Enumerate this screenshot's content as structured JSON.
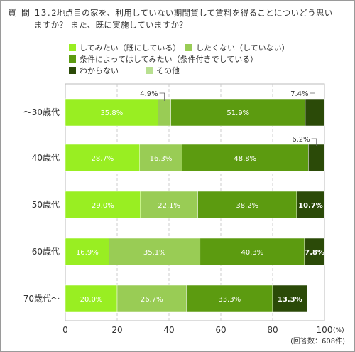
{
  "question": {
    "number": "質 問 13.",
    "text_line1": "2地点目の家を、利用していない期間貸して賃料を得ることについどう思い",
    "text_line2": "ますか？ また、既に実施していますか？"
  },
  "chart_data": {
    "type": "bar",
    "orientation": "horizontal",
    "stacked": true,
    "categories": [
      "～30歳代",
      "40歳代",
      "50歳代",
      "60歳代",
      "70歳代～"
    ],
    "series": [
      {
        "name": "してみたい（既にしている）",
        "color": "#99ee22",
        "values": [
          35.8,
          28.7,
          29.0,
          16.9,
          20.0
        ]
      },
      {
        "name": "したくない（していない）",
        "color": "#99cc55",
        "values": [
          4.9,
          16.3,
          22.1,
          35.1,
          26.7
        ]
      },
      {
        "name": "条件によってはしてみたい（条件付きでしている）",
        "color": "#5c9b10",
        "values": [
          51.9,
          48.8,
          38.2,
          40.3,
          33.3
        ]
      },
      {
        "name": "わからない",
        "color": "#2b4a08",
        "values": [
          7.4,
          6.2,
          10.7,
          7.8,
          13.3
        ]
      },
      {
        "name": "その他",
        "color": "#b8e090",
        "values": [
          0,
          0,
          0,
          0,
          0
        ]
      }
    ],
    "data_labels": [
      [
        "35.8%",
        "4.9%",
        "51.9%",
        "7.4%"
      ],
      [
        "28.7%",
        "16.3%",
        "48.8%",
        "6.2%"
      ],
      [
        "29.0%",
        "22.1%",
        "38.2%",
        "10.7%"
      ],
      [
        "16.9%",
        "35.1%",
        "40.3%",
        "7.8%"
      ],
      [
        "20.0%",
        "26.7%",
        "33.3%",
        "13.3%"
      ]
    ],
    "outside_labels": [
      [
        1,
        3
      ],
      [
        3
      ],
      [],
      [],
      []
    ],
    "xlim": [
      0,
      100
    ],
    "x_ticks": [
      "0",
      "20",
      "40",
      "60",
      "80",
      "100"
    ],
    "x_unit": "(%)",
    "note": "(回答数：608件)",
    "grid": true,
    "legend_position": "top"
  }
}
